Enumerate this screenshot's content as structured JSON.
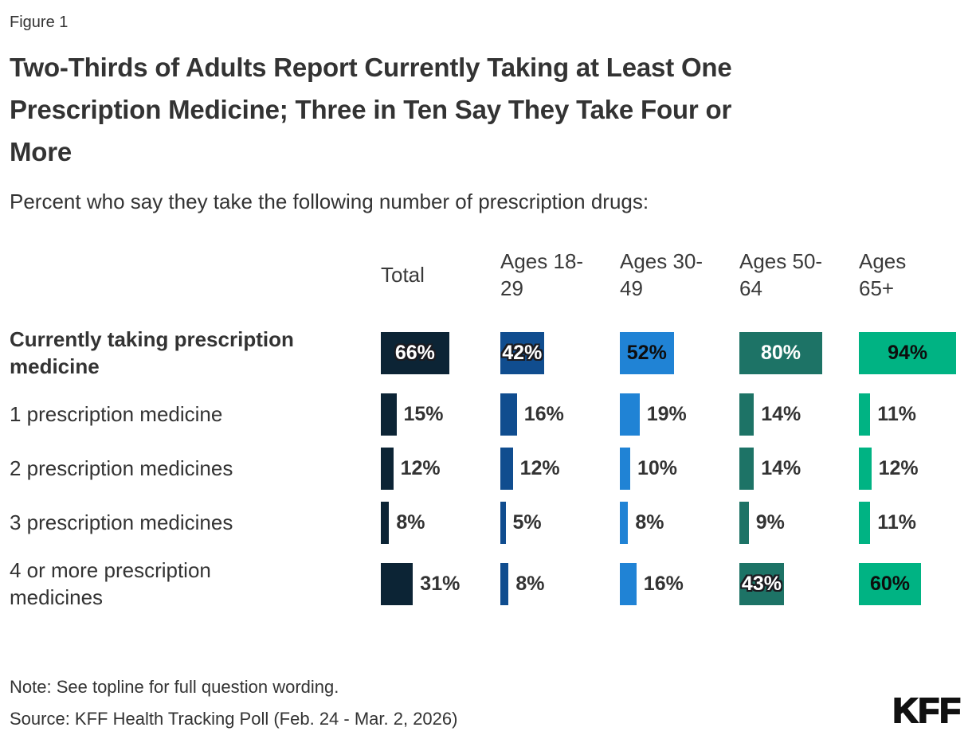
{
  "figure_label": "Figure 1",
  "title_lines": [
    "Two-Thirds of Adults Report Currently Taking at Least One",
    "Prescription Medicine; Three in Ten Say They Take Four or",
    "More"
  ],
  "subtitle": "Percent who say they take the following number of prescription drugs:",
  "note": "Note: See topline for full question wording.",
  "source": "Source: KFF Health Tracking Poll (Feb. 24 - Mar. 2, 2026)",
  "logo_text": "KFF",
  "columns": [
    {
      "label": "Total",
      "lines": [
        "Total"
      ],
      "color": "#0c2435"
    },
    {
      "label": "Ages 18-29",
      "lines": [
        "Ages 18-",
        "29"
      ],
      "color": "#104d8f"
    },
    {
      "label": "Ages 30-49",
      "lines": [
        "Ages 30-",
        "49"
      ],
      "color": "#2083d5"
    },
    {
      "label": "Ages 50-64",
      "lines": [
        "Ages 50-",
        "64"
      ],
      "color": "#1d7366"
    },
    {
      "label": "Ages 65+",
      "lines": [
        "Ages",
        "65+"
      ],
      "color": "#00b383"
    }
  ],
  "rows": [
    {
      "label": "Currently taking prescription medicine",
      "lines": [
        "Currently taking prescription",
        "medicine"
      ],
      "bold": true,
      "tall": true,
      "values": [
        66,
        42,
        52,
        80,
        94
      ],
      "display": [
        "66%",
        "42%",
        "52%",
        "80%",
        "94%"
      ],
      "label_styles": [
        "inside-outline",
        "inside-outline",
        "inside-dark",
        "inside-light",
        "inside-dark"
      ]
    },
    {
      "label": "1 prescription medicine",
      "lines": [
        "1 prescription medicine"
      ],
      "bold": false,
      "tall": false,
      "values": [
        15,
        16,
        19,
        14,
        11
      ],
      "display": [
        "15%",
        "16%",
        "19%",
        "14%",
        "11%"
      ],
      "label_styles": [
        "outside",
        "outside",
        "outside",
        "outside",
        "outside"
      ]
    },
    {
      "label": "2 prescription medicines",
      "lines": [
        "2 prescription medicines"
      ],
      "bold": false,
      "tall": false,
      "values": [
        12,
        12,
        10,
        14,
        12
      ],
      "display": [
        "12%",
        "12%",
        "10%",
        "14%",
        "12%"
      ],
      "label_styles": [
        "outside",
        "outside",
        "outside",
        "outside",
        "outside"
      ]
    },
    {
      "label": "3 prescription medicines",
      "lines": [
        "3 prescription medicines"
      ],
      "bold": false,
      "tall": false,
      "values": [
        8,
        5,
        8,
        9,
        11
      ],
      "display": [
        "8%",
        "5%",
        "8%",
        "9%",
        "11%"
      ],
      "label_styles": [
        "outside",
        "outside",
        "outside",
        "outside",
        "outside"
      ]
    },
    {
      "label": "4 or more prescription medicines",
      "lines": [
        "4 or more prescription",
        "medicines"
      ],
      "bold": false,
      "tall": true,
      "values": [
        31,
        8,
        16,
        43,
        60
      ],
      "display": [
        "31%",
        "8%",
        "16%",
        "43%",
        "60%"
      ],
      "label_styles": [
        "outside",
        "outside",
        "outside",
        "inside-outline",
        "inside-dark"
      ]
    }
  ],
  "chart_data": {
    "type": "bar",
    "title": "Two-Thirds of Adults Report Currently Taking at Least One Prescription Medicine; Three in Ten Say They Take Four or More",
    "subtitle": "Percent who say they take the following number of prescription drugs:",
    "figure_label": "Figure 1",
    "categories": [
      "Currently taking prescription medicine",
      "1 prescription medicine",
      "2 prescription medicines",
      "3 prescription medicines",
      "4 or more prescription medicines"
    ],
    "series": [
      {
        "name": "Total",
        "color": "#0c2435",
        "values": [
          66,
          15,
          12,
          8,
          31
        ]
      },
      {
        "name": "Ages 18-29",
        "color": "#104d8f",
        "values": [
          42,
          16,
          12,
          5,
          8
        ]
      },
      {
        "name": "Ages 30-49",
        "color": "#2083d5",
        "values": [
          52,
          19,
          10,
          8,
          16
        ]
      },
      {
        "name": "Ages 50-64",
        "color": "#1d7366",
        "values": [
          80,
          14,
          14,
          9,
          43
        ]
      },
      {
        "name": "Ages 65+",
        "color": "#00b383",
        "values": [
          94,
          11,
          12,
          11,
          60
        ]
      }
    ],
    "unit": "%",
    "xlim": [
      0,
      100
    ],
    "orientation": "horizontal",
    "grid": false,
    "legend_position": "column-headers",
    "note": "Note: See topline for full question wording.",
    "source": "Source: KFF Health Tracking Poll (Feb. 24 - Mar. 2, 2026)"
  }
}
